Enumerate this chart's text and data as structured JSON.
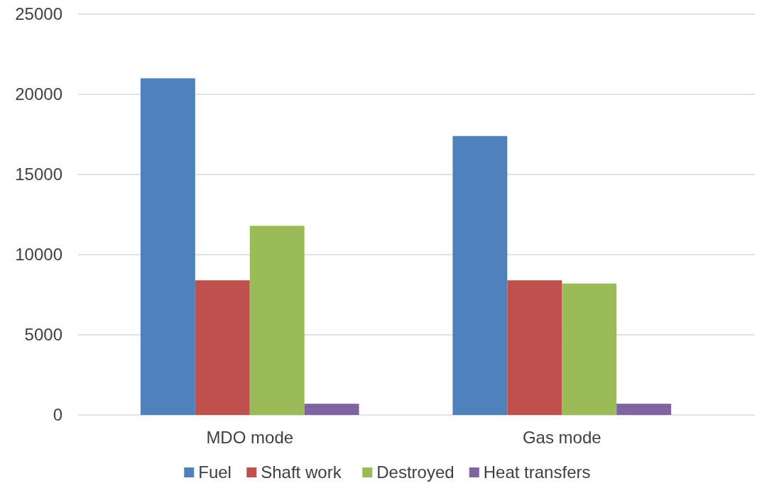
{
  "chart_data": {
    "type": "bar",
    "categories": [
      "MDO mode",
      "Gas mode"
    ],
    "series": [
      {
        "name": "Fuel",
        "color": "#4f81bd",
        "values": [
          21000,
          17400
        ]
      },
      {
        "name": "Shaft work",
        "color": "#c0504d",
        "values": [
          8400,
          8400
        ]
      },
      {
        "name": "Destroyed",
        "color": "#9bbb59",
        "values": [
          11800,
          8200
        ]
      },
      {
        "name": "Heat transfers",
        "color": "#8064a2",
        "values": [
          700,
          700
        ]
      }
    ],
    "ylim": [
      0,
      25000
    ],
    "yticks": [
      0,
      5000,
      10000,
      15000,
      20000,
      25000
    ],
    "grid": "y",
    "legend": "bottom"
  }
}
